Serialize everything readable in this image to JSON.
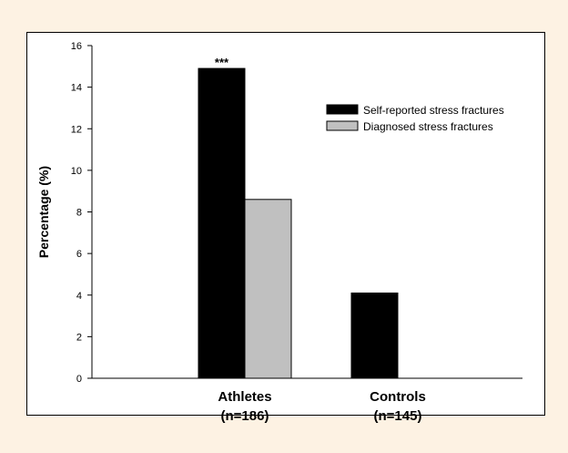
{
  "chart_data": {
    "type": "bar",
    "categories": [
      "Athletes\n(n=186)",
      "Controls\n(n=145)"
    ],
    "category_lines": [
      [
        "Athletes",
        "(n=186)"
      ],
      [
        "Controls",
        "(n=145)"
      ]
    ],
    "series": [
      {
        "name": "Self-reported stress fractures",
        "values": [
          14.9,
          4.1
        ],
        "color": "#000000"
      },
      {
        "name": "Diagnosed stress fractures",
        "values": [
          8.6,
          0
        ],
        "color": "#c0c0c0"
      }
    ],
    "xlabel": "",
    "ylabel": "Percentage (%)",
    "ylim": [
      0,
      16
    ],
    "yticks": [
      0,
      2,
      4,
      6,
      8,
      10,
      12,
      14,
      16
    ],
    "annotations": [
      {
        "text": "***",
        "category": 0,
        "series": 0
      }
    ],
    "legend_position": "top-right",
    "grid": false
  }
}
